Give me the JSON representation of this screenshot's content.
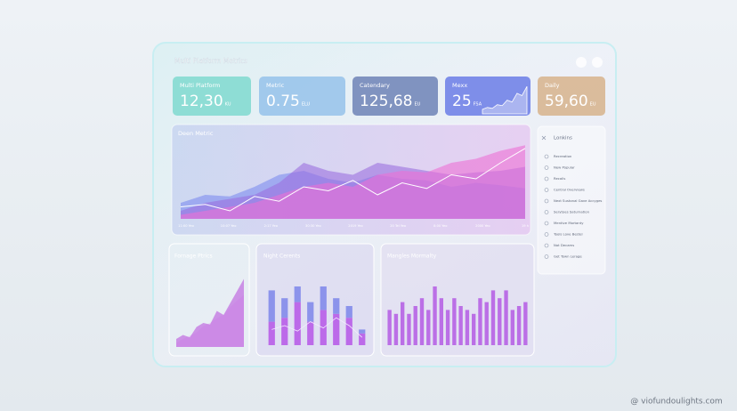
{
  "header": {
    "title": "Multi Platform Metrics"
  },
  "cards": [
    {
      "label": "Multi Platform",
      "value": "12,30",
      "unit": "KU",
      "color": "#7fd9cf"
    },
    {
      "label": "Metric",
      "value": "0.75",
      "unit": "ELU",
      "color": "#95c2ea"
    },
    {
      "label": "Catendary",
      "value": "125,68",
      "unit": "EU",
      "color": "#6d82b6"
    },
    {
      "label": "Mexx",
      "value": "25",
      "unit": "FSA",
      "color": "#6b7ce6",
      "chart": {
        "values": [
          10,
          14,
          12,
          20,
          18,
          30,
          26,
          45,
          40,
          60
        ],
        "ylim": [
          0,
          70
        ]
      }
    },
    {
      "label": "Daily",
      "value": "59,60",
      "unit": "EU",
      "color": "#d7b38c"
    }
  ],
  "main_chart": {
    "title": "Deen Metric",
    "x_labels": [
      "11:00 Yeo",
      "10:07 Yeo",
      "2:17 Yeo",
      "30:30 Yeo",
      "2019 Yeo",
      "20 Tel Yeo",
      "8:00 Yeo",
      "2000 Yeo",
      "19 h"
    ],
    "ylim": [
      0,
      100
    ],
    "series": [
      {
        "color": "#7d8cf0",
        "values": [
          20,
          30,
          28,
          40,
          55,
          60,
          50,
          45,
          55,
          50,
          48,
          40,
          45,
          42,
          38
        ]
      },
      {
        "color": "#9b6fe0",
        "values": [
          10,
          20,
          25,
          30,
          45,
          70,
          60,
          55,
          70,
          65,
          60,
          55,
          58,
          60,
          65
        ]
      },
      {
        "color": "#ec6fd6",
        "values": [
          5,
          10,
          15,
          20,
          30,
          40,
          45,
          40,
          55,
          60,
          58,
          70,
          75,
          85,
          92
        ]
      }
    ],
    "line": {
      "color": "#ffffff",
      "values": [
        15,
        18,
        10,
        28,
        22,
        40,
        35,
        48,
        30,
        45,
        38,
        55,
        50,
        70,
        88
      ]
    }
  },
  "sidebar": {
    "title": "Lonkins",
    "items": [
      "Recreation",
      "New Popular",
      "Recalls",
      "Central Overviews",
      "Next Sustonal Gave Accyges",
      "Serytoes Saturnation",
      "Mentive Mortanty",
      "Tools Love Bestel",
      "Not Decams",
      "Get Town Lerage"
    ]
  },
  "panels": [
    {
      "title": "Fornage Ptrics",
      "ylim": [
        0,
        100
      ],
      "series": [
        {
          "color": "#e7c8f2",
          "values": [
            5,
            10,
            14,
            18,
            26,
            30,
            36,
            40,
            50,
            58,
            65
          ]
        },
        {
          "color": "#c06be0",
          "values": [
            10,
            15,
            12,
            25,
            30,
            28,
            45,
            40,
            55,
            70,
            85
          ]
        }
      ]
    },
    {
      "title": "Night Cerents",
      "ylim": [
        0,
        100
      ],
      "series": [
        {
          "color": "#b656e8",
          "values": [
            30,
            35,
            55,
            30,
            45,
            40,
            35,
            15
          ]
        },
        {
          "color": "#7d86ea",
          "values": [
            40,
            25,
            20,
            25,
            30,
            20,
            15,
            5
          ]
        }
      ],
      "line": {
        "color": "#f4eaff",
        "values": [
          20,
          25,
          18,
          30,
          22,
          35,
          25,
          10
        ]
      }
    },
    {
      "title": "Mangles Mormalty",
      "ylim": [
        0,
        100
      ],
      "color": "#b45be4",
      "values": [
        45,
        40,
        55,
        40,
        50,
        60,
        45,
        75,
        60,
        45,
        60,
        50,
        45,
        40,
        60,
        55,
        70,
        60,
        70,
        45,
        50,
        55
      ]
    }
  ],
  "watermark": "@ viofundoulights.com"
}
